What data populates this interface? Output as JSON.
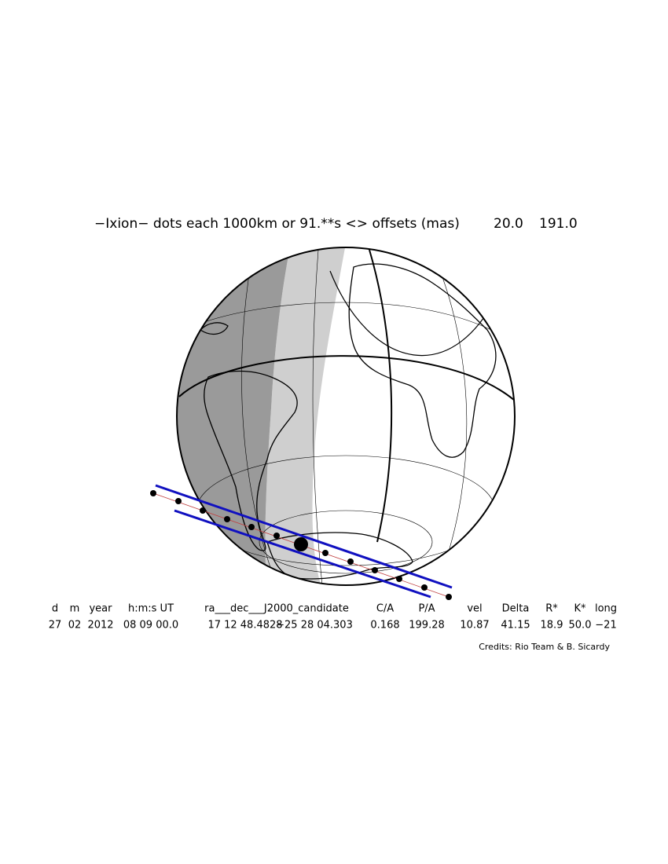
{
  "title": "−Ixion− dots each 1000km or 91.**s <> offsets (mas)",
  "offsets": [
    "20.0",
    "191.0"
  ],
  "table": {
    "headers": [
      "d",
      "m",
      "year",
      "h:m:s UT",
      "ra___dec___J2000_candidate",
      "C/A",
      "P/A",
      "vel",
      "Delta",
      "R*",
      "K*",
      "long"
    ],
    "values": [
      "27",
      "02",
      "2012",
      "08 09 00.0",
      "17 12 48.4828",
      "−25 28 04.303",
      "0.168",
      "199.28",
      "10.87",
      "41.15",
      "18.9",
      "50.0",
      "−21"
    ]
  },
  "credits": "Credits: Rio Team & B. Sicardy"
}
